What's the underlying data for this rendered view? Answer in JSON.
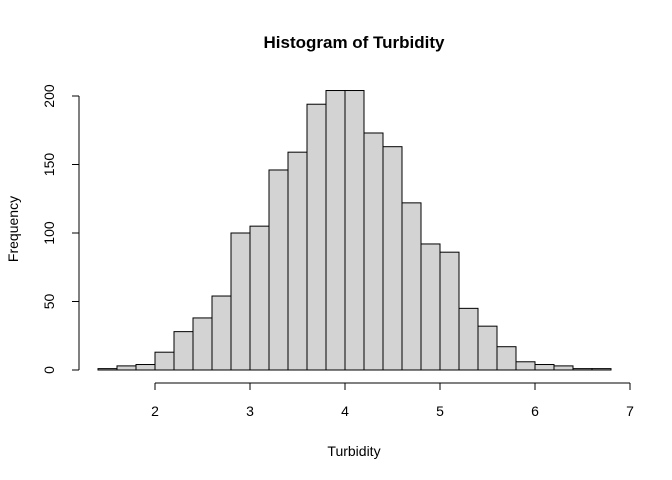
{
  "chart_data": {
    "type": "bar",
    "title": "Histogram of Turbidity",
    "xlabel": "Turbidity",
    "ylabel": "Frequency",
    "bin_width": 0.2,
    "bin_starts": [
      1.4,
      1.6,
      1.8,
      2.0,
      2.2,
      2.4,
      2.6,
      2.8,
      3.0,
      3.2,
      3.4,
      3.6,
      3.8,
      4.0,
      4.2,
      4.4,
      4.6,
      4.8,
      5.0,
      5.2,
      5.4,
      5.6,
      5.8,
      6.0,
      6.2,
      6.4,
      6.6
    ],
    "values": [
      1,
      3,
      4,
      13,
      28,
      38,
      54,
      100,
      105,
      146,
      159,
      194,
      204,
      204,
      173,
      163,
      122,
      92,
      86,
      45,
      32,
      17,
      6,
      4,
      3,
      1,
      1
    ],
    "xlim": [
      1.4,
      6.8
    ],
    "ylim": [
      0,
      204
    ],
    "xticks": [
      2,
      3,
      4,
      5,
      6,
      7
    ],
    "yticks": [
      0,
      50,
      100,
      150,
      200
    ],
    "grid": false,
    "bar_color": "#d3d3d3",
    "edge_color": "#000000"
  }
}
